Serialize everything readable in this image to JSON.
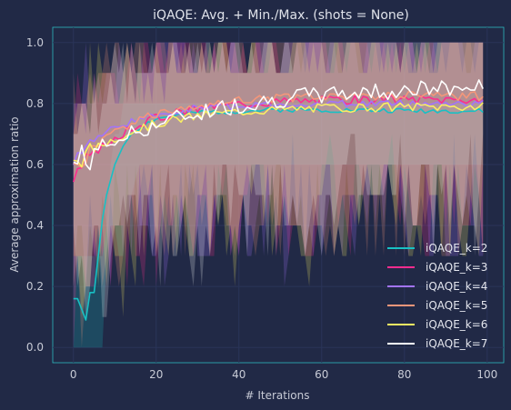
{
  "chart_data": {
    "type": "line",
    "title": "iQAQE: Avg. + Min./Max. (shots = None)",
    "xlabel": "# Iterations",
    "ylabel": "Average approximation ratio",
    "xlim": [
      -5,
      104
    ],
    "ylim": [
      -0.05,
      1.05
    ],
    "xticks": [
      0,
      20,
      40,
      60,
      80,
      100
    ],
    "yticks": [
      0.0,
      0.2,
      0.4,
      0.6,
      0.8,
      1.0
    ],
    "grid": true,
    "legend_position": "lower-right",
    "series": [
      {
        "name": "iQAQE_k=2",
        "color": "#18c0c4",
        "avg_start": 0.16,
        "avg_end": 0.775,
        "rate": 0.09,
        "noise": 0.008,
        "seed": 2,
        "avg_points": [
          [
            0,
            0.16
          ],
          [
            1,
            0.16
          ],
          [
            3,
            0.09
          ],
          [
            4,
            0.18
          ],
          [
            5,
            0.18
          ],
          [
            6,
            0.3
          ],
          [
            7,
            0.42
          ],
          [
            8,
            0.5
          ],
          [
            9,
            0.55
          ],
          [
            10,
            0.6
          ],
          [
            11,
            0.63
          ],
          [
            12,
            0.66
          ],
          [
            14,
            0.7
          ],
          [
            17,
            0.73
          ],
          [
            20,
            0.75
          ],
          [
            30,
            0.77
          ],
          [
            50,
            0.78
          ],
          [
            99,
            0.775
          ]
        ],
        "min_band": [
          [
            0,
            0.0
          ],
          [
            7,
            0.0
          ],
          [
            8,
            0.3
          ],
          [
            9,
            0.4
          ],
          [
            10,
            0.4
          ],
          [
            11,
            0.3
          ],
          [
            12,
            0.3
          ],
          [
            13,
            0.5
          ],
          [
            14,
            0.5
          ],
          [
            16,
            0.6
          ],
          [
            99,
            0.6
          ]
        ],
        "max_band": [
          [
            0,
            0.3
          ],
          [
            7,
            0.3
          ],
          [
            8,
            0.4
          ],
          [
            9,
            0.6
          ],
          [
            10,
            0.7
          ],
          [
            11,
            0.7
          ],
          [
            12,
            0.8
          ],
          [
            99,
            0.8
          ]
        ]
      },
      {
        "name": "iQAQE_k=3",
        "color": "#fe2c8f",
        "avg_start": 0.56,
        "avg_end": 0.815,
        "rate": 0.07,
        "noise": 0.015,
        "seed": 3
      },
      {
        "name": "iQAQE_k=4",
        "color": "#a374f9",
        "avg_start": 0.62,
        "avg_end": 0.8,
        "rate": 0.08,
        "noise": 0.012,
        "seed": 4
      },
      {
        "name": "iQAQE_k=5",
        "color": "#f4967a",
        "avg_start": 0.58,
        "avg_end": 0.825,
        "rate": 0.07,
        "noise": 0.015,
        "seed": 5
      },
      {
        "name": "iQAQE_k=6",
        "color": "#f9ee63",
        "avg_start": 0.6,
        "avg_end": 0.79,
        "rate": 0.06,
        "noise": 0.015,
        "seed": 6
      },
      {
        "name": "iQAQE_k=7",
        "color": "#ffffff",
        "avg_start": 0.6,
        "avg_end": 0.86,
        "rate": 0.035,
        "noise": 0.03,
        "seed": 7
      }
    ]
  }
}
